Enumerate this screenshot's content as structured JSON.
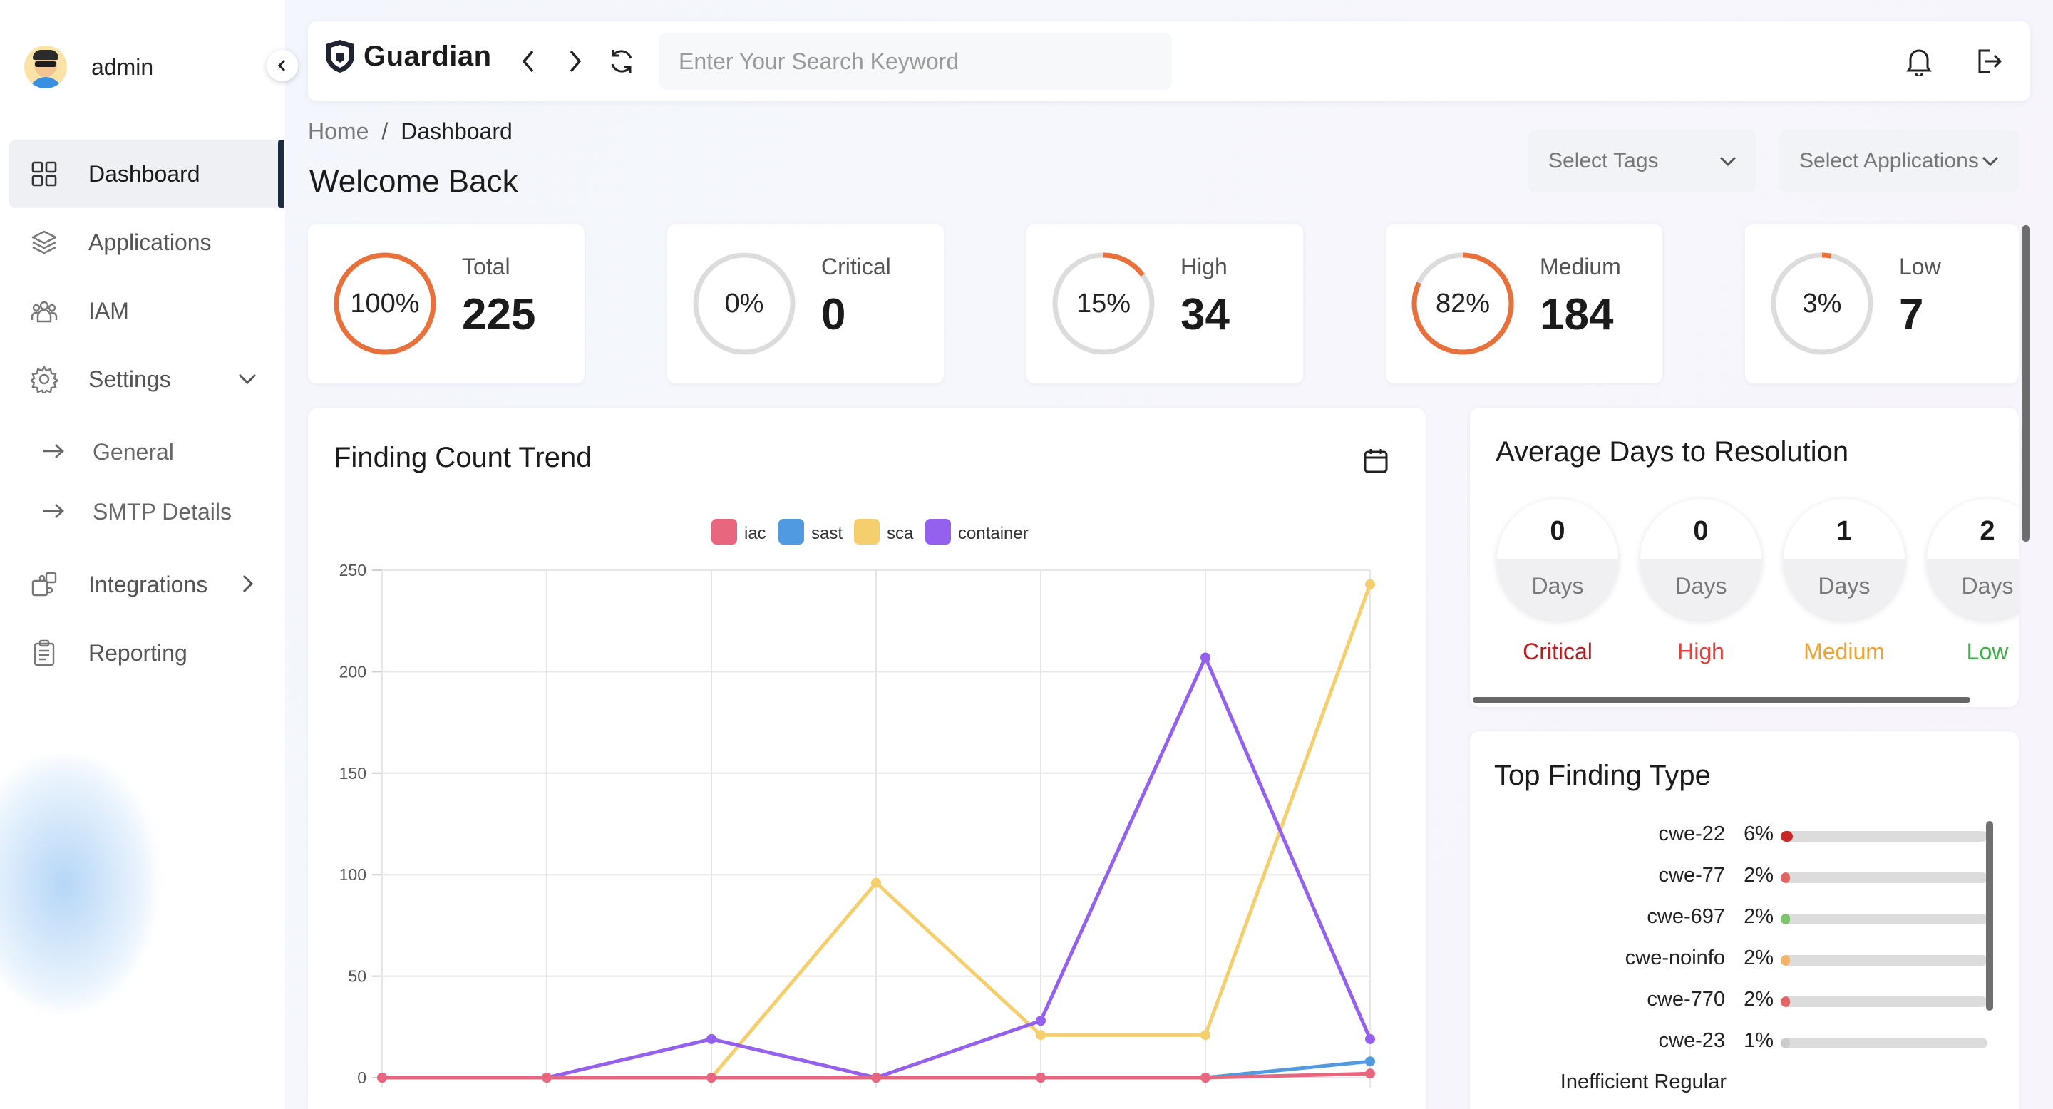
{
  "user": {
    "name": "admin"
  },
  "sidebar": {
    "items": [
      {
        "label": "Dashboard",
        "icon": "grid-icon"
      },
      {
        "label": "Applications",
        "icon": "layers-icon"
      },
      {
        "label": "IAM",
        "icon": "users-icon"
      },
      {
        "label": "Settings",
        "icon": "gear-icon"
      }
    ],
    "settings_sub": [
      "General",
      "SMTP Details"
    ],
    "bottom_items": [
      {
        "label": "Integrations",
        "icon": "puzzle-icon"
      },
      {
        "label": "Reporting",
        "icon": "clipboard-icon"
      }
    ]
  },
  "header": {
    "brand": "Guardian",
    "search_placeholder": "Enter Your Search Keyword"
  },
  "breadcrumb": {
    "home": "Home",
    "sep": "/",
    "current": "Dashboard"
  },
  "welcome": "Welcome Back",
  "filters": {
    "tags_placeholder": "Select Tags",
    "apps_placeholder": "Select Applications"
  },
  "stats": [
    {
      "label": "Total",
      "value": "225",
      "percent": "100%",
      "fraction": 1.0,
      "color": "#e8703a"
    },
    {
      "label": "Critical",
      "value": "0",
      "percent": "0%",
      "fraction": 0.0,
      "color": "#e8703a"
    },
    {
      "label": "High",
      "value": "34",
      "percent": "15%",
      "fraction": 0.15,
      "color": "#e8703a"
    },
    {
      "label": "Medium",
      "value": "184",
      "percent": "82%",
      "fraction": 0.82,
      "color": "#e8703a"
    },
    {
      "label": "Low",
      "value": "7",
      "percent": "3%",
      "fraction": 0.03,
      "color": "#e8703a"
    }
  ],
  "chart_data": {
    "type": "line",
    "title": "Finding Count Trend",
    "xlabel": "",
    "ylabel": "",
    "ylim": [
      0,
      250
    ],
    "yticks": [
      0,
      50,
      100,
      150,
      200,
      250
    ],
    "grid": true,
    "legend": "top",
    "x": [
      0,
      1,
      2,
      3,
      4,
      5,
      6
    ],
    "series": [
      {
        "name": "iac",
        "color": "#e8677e",
        "values": [
          0,
          0,
          0,
          0,
          0,
          0,
          2
        ]
      },
      {
        "name": "sast",
        "color": "#4f9ae0",
        "values": [
          0,
          0,
          0,
          0,
          0,
          0,
          8
        ]
      },
      {
        "name": "sca",
        "color": "#f5cf6e",
        "values": [
          0,
          0,
          0,
          96,
          21,
          21,
          243
        ]
      },
      {
        "name": "container",
        "color": "#9460ee",
        "values": [
          0,
          0,
          19,
          0,
          28,
          207,
          19
        ]
      }
    ]
  },
  "avg_days": {
    "title": "Average Days to Resolution",
    "unit": "Days",
    "items": [
      {
        "value": "0",
        "severity": "Critical",
        "color": "#b51f1f"
      },
      {
        "value": "0",
        "severity": "High",
        "color": "#e0423f"
      },
      {
        "value": "1",
        "severity": "Medium",
        "color": "#eea432"
      },
      {
        "value": "2",
        "severity": "Low",
        "color": "#3fae48"
      }
    ]
  },
  "top_finding": {
    "title": "Top Finding Type",
    "items": [
      {
        "name": "cwe-22",
        "percent": "6%",
        "fraction": 0.06,
        "color": "#c62828"
      },
      {
        "name": "cwe-77",
        "percent": "2%",
        "fraction": 0.02,
        "color": "#e06666"
      },
      {
        "name": "cwe-697",
        "percent": "2%",
        "fraction": 0.02,
        "color": "#7cc36b"
      },
      {
        "name": "cwe-noinfo",
        "percent": "2%",
        "fraction": 0.02,
        "color": "#f2b36b"
      },
      {
        "name": "cwe-770",
        "percent": "2%",
        "fraction": 0.02,
        "color": "#e06666"
      },
      {
        "name": "cwe-23",
        "percent": "1%",
        "fraction": 0.01,
        "color": "#cccccc"
      }
    ],
    "partial_item": "Inefficient Regular"
  }
}
